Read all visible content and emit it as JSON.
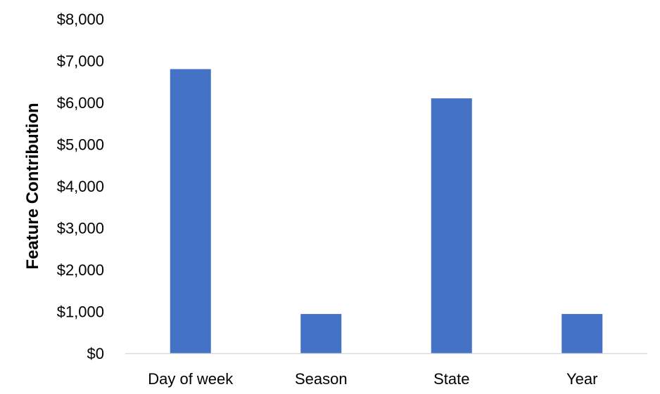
{
  "chart_data": {
    "type": "bar",
    "title": "",
    "xlabel": "",
    "ylabel": "Feature Contribution",
    "categories": [
      "Day of week",
      "Season",
      "State",
      "Year"
    ],
    "values": [
      6800,
      940,
      6100,
      940
    ],
    "ylim": [
      0,
      8000
    ],
    "yticks": [
      0,
      1000,
      2000,
      3000,
      4000,
      5000,
      6000,
      7000,
      8000
    ],
    "ytick_labels": [
      "$0",
      "$1,000",
      "$2,000",
      "$3,000",
      "$4,000",
      "$5,000",
      "$6,000",
      "$7,000",
      "$8,000"
    ],
    "grid": false,
    "legend": "none",
    "bar_color": "#4472C4",
    "axis_color": "#D9D9D9"
  }
}
